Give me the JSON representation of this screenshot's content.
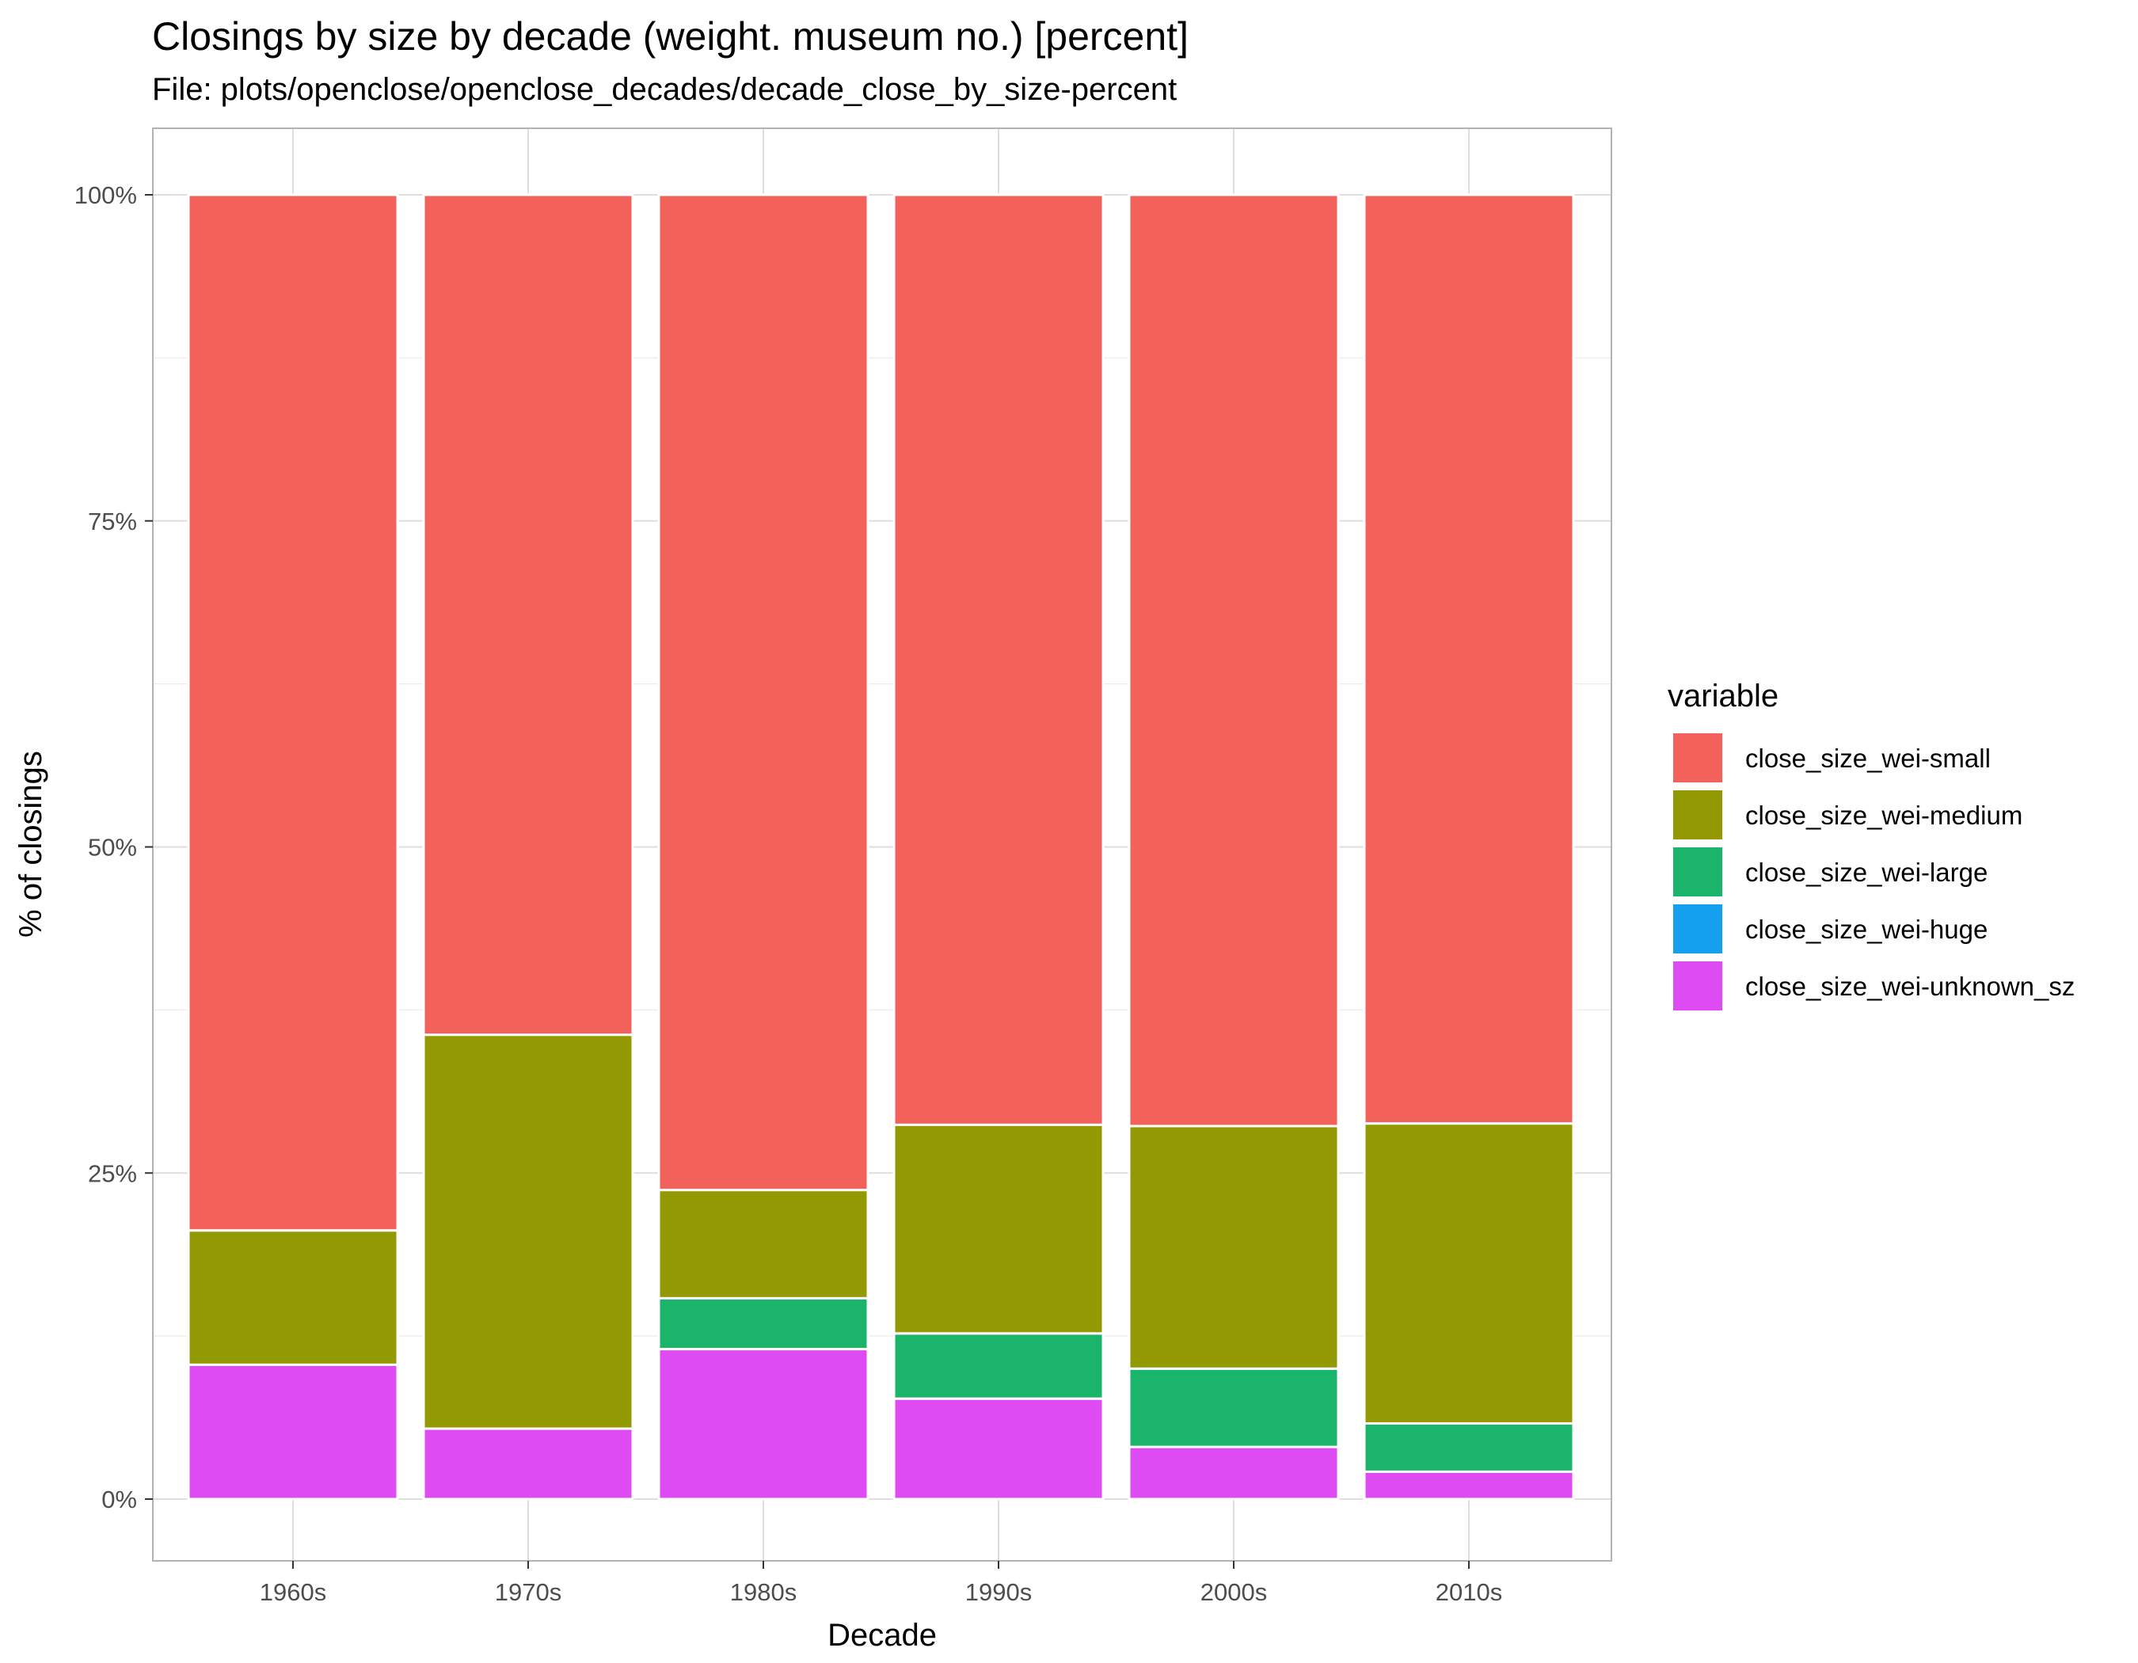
{
  "chart_data": {
    "type": "bar",
    "stacked": true,
    "title": "Closings by size by decade (weight. museum no.) [percent]",
    "subtitle": "File: plots/openclose/openclose_decades/decade_close_by_size-percent",
    "xlabel": "Decade",
    "ylabel": "% of closings",
    "ylim": [
      0,
      1
    ],
    "y_ticks": [
      0,
      0.25,
      0.5,
      0.75,
      1.0
    ],
    "y_tick_labels": [
      "0%",
      "25%",
      "50%",
      "75%",
      "100%"
    ],
    "categories": [
      "1960s",
      "1970s",
      "1980s",
      "1990s",
      "2000s",
      "2010s"
    ],
    "stack_order_bottom_to_top": [
      "close_size_wei-unknown_sz",
      "close_size_wei-huge",
      "close_size_wei-large",
      "close_size_wei-medium",
      "close_size_wei-small"
    ],
    "series": [
      {
        "name": "close_size_wei-small",
        "color": "#F2615A",
        "values": [
          0.794,
          0.644,
          0.763,
          0.713,
          0.714,
          0.712
        ]
      },
      {
        "name": "close_size_wei-medium",
        "color": "#939903",
        "values": [
          0.103,
          0.302,
          0.083,
          0.16,
          0.186,
          0.23
        ]
      },
      {
        "name": "close_size_wei-large",
        "color": "#1AB46B",
        "values": [
          0.0,
          0.0,
          0.039,
          0.05,
          0.06,
          0.037
        ]
      },
      {
        "name": "close_size_wei-huge",
        "color": "#149FEF",
        "values": [
          0.0,
          0.0,
          0.0,
          0.0,
          0.0,
          0.0
        ]
      },
      {
        "name": "close_size_wei-unknown_sz",
        "color": "#DF4BF2",
        "values": [
          0.103,
          0.054,
          0.115,
          0.077,
          0.04,
          0.021
        ]
      }
    ],
    "grid": true,
    "legend": {
      "title": "variable",
      "position": "right"
    }
  }
}
